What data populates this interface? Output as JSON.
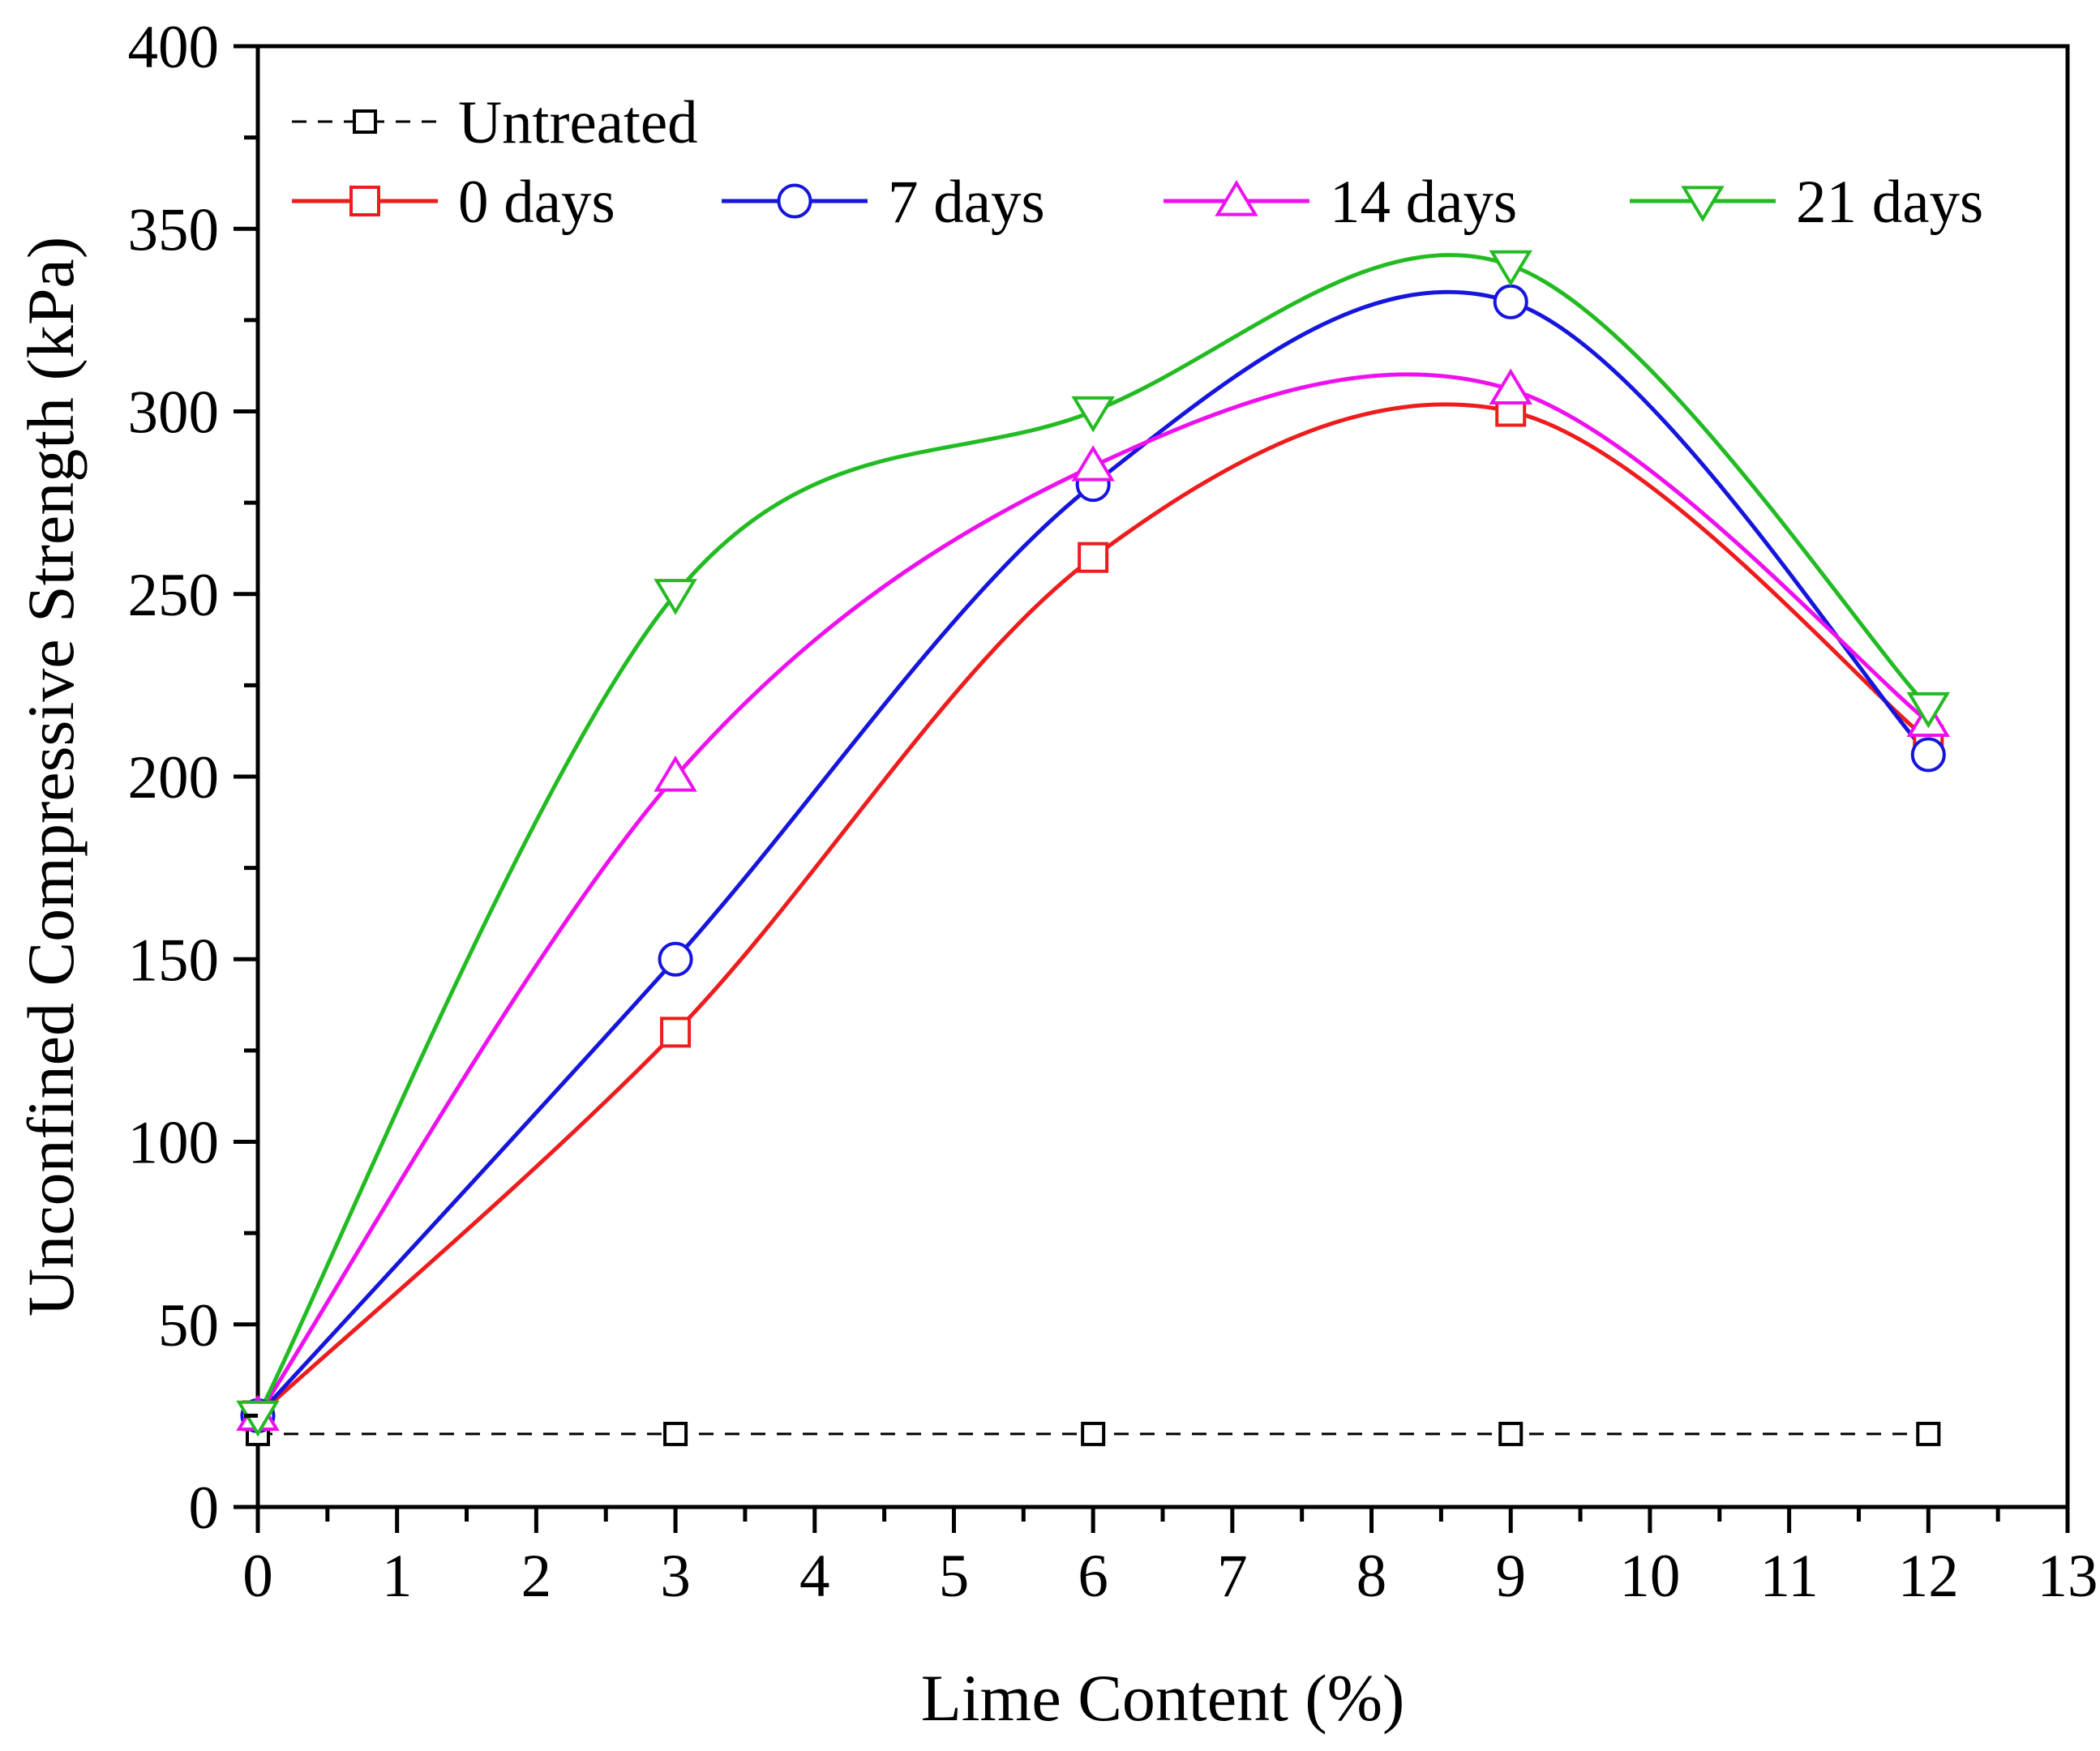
{
  "chart_data": {
    "type": "line",
    "title": "",
    "xlabel": "Lime Content (%)",
    "ylabel": "Unconfined Compressive Strength (kPa)",
    "xlim": [
      0,
      13
    ],
    "ylim": [
      0,
      400
    ],
    "x_ticks": [
      0,
      1,
      2,
      3,
      4,
      5,
      6,
      7,
      8,
      9,
      10,
      11,
      12,
      13
    ],
    "x_tick_labels": [
      "0",
      "1",
      "2",
      "3",
      "4",
      "5",
      "6",
      "7",
      "8",
      "9",
      "10",
      "11",
      "12",
      "13"
    ],
    "y_ticks": [
      0,
      50,
      100,
      150,
      200,
      250,
      300,
      350,
      400
    ],
    "y_tick_labels": [
      "0",
      "50",
      "100",
      "150",
      "200",
      "250",
      "300",
      "350",
      "400"
    ],
    "grid": false,
    "legend_position": "top-left",
    "x": [
      0,
      3,
      6,
      9,
      12
    ],
    "series": [
      {
        "name": "Untreated",
        "values": [
          20,
          20,
          20,
          20,
          20
        ],
        "color": "#000000",
        "marker": "square",
        "line": "dashed",
        "smooth": false
      },
      {
        "name": "0 days",
        "values": [
          25,
          130,
          260,
          300,
          210
        ],
        "color": "#ee1c1c",
        "marker": "square",
        "line": "solid",
        "smooth": true
      },
      {
        "name": "7 days",
        "values": [
          25,
          150,
          280,
          330,
          206
        ],
        "color": "#1515dd",
        "marker": "circle",
        "line": "solid",
        "smooth": true
      },
      {
        "name": "14 days",
        "values": [
          25,
          200,
          285,
          306,
          215
        ],
        "color": "#ee10ee",
        "marker": "triangle-up",
        "line": "solid",
        "smooth": true
      },
      {
        "name": "21 days",
        "values": [
          25,
          250,
          300,
          340,
          219
        ],
        "color": "#22bb22",
        "marker": "triangle-down",
        "line": "solid",
        "smooth": true
      }
    ]
  }
}
